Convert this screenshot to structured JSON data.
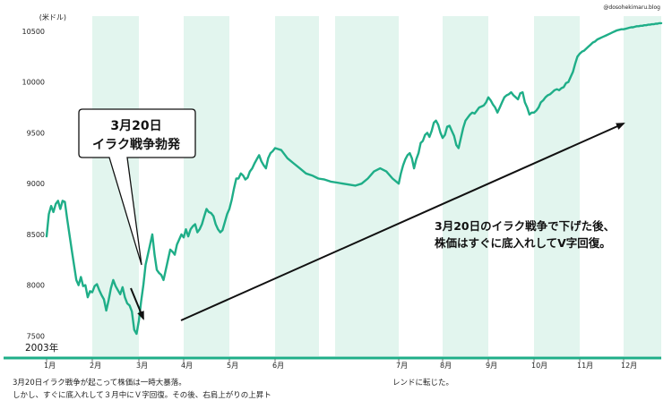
{
  "chart_data": {
    "type": "line",
    "source": "@dosohekimaru.blog",
    "yunit": "(米ドル)",
    "year_label": "2003年",
    "ylim": [
      7300,
      10650
    ],
    "yticks": [
      7500,
      8000,
      8500,
      9000,
      9500,
      10000,
      10500
    ],
    "months": [
      "1月",
      "2月",
      "3月",
      "4月",
      "5月",
      "6月",
      "7月",
      "8月",
      "9月",
      "10月",
      "11月",
      "12月"
    ],
    "grid": false,
    "colors": {
      "line": "#1fae88",
      "band": "#e2f5ee",
      "axis": "#1fae88"
    },
    "series": [
      {
        "x": [
          0.0,
          0.05,
          0.1,
          0.15,
          0.2,
          0.25,
          0.3,
          0.35,
          0.4,
          0.45,
          0.5,
          0.55,
          0.6,
          0.65,
          0.7,
          0.75,
          0.8,
          0.85,
          0.9,
          0.95,
          1.0,
          1.05,
          1.1,
          1.15,
          1.2,
          1.25,
          1.3,
          1.35,
          1.4,
          1.45,
          1.5,
          1.55,
          1.6,
          1.65,
          1.7,
          1.75,
          1.8,
          1.85,
          1.9,
          1.95,
          2.0,
          2.05,
          2.1,
          2.15,
          2.2,
          2.25,
          2.3,
          2.35,
          2.4,
          2.45,
          2.5,
          2.55,
          2.6,
          2.65,
          2.7,
          2.75,
          2.8,
          2.85,
          2.9,
          2.95,
          3.0,
          3.05,
          3.1,
          3.15,
          3.2,
          3.25,
          3.3,
          3.35,
          3.4,
          3.45,
          3.5,
          3.55,
          3.6,
          3.65,
          3.7,
          3.75,
          3.8,
          3.85,
          3.9,
          3.95,
          4.0,
          4.05,
          4.1,
          4.15,
          4.2,
          4.25,
          4.3,
          4.35,
          4.4,
          4.45,
          4.5,
          4.55,
          4.6,
          4.65,
          4.7,
          4.75,
          4.8,
          4.85,
          4.9,
          4.95,
          5.0,
          5.05,
          5.1,
          5.15,
          5.2,
          5.25,
          5.3,
          5.35,
          5.4,
          5.45,
          5.5,
          5.55,
          5.6,
          5.65,
          5.7,
          5.75,
          5.8,
          5.85,
          5.9,
          5.95,
          6.0,
          6.05,
          6.1,
          6.15,
          6.2,
          6.25,
          6.3,
          6.35,
          6.4,
          6.45,
          6.5,
          6.55,
          6.6,
          6.65,
          6.7,
          6.75,
          6.8,
          6.85,
          6.9,
          6.95,
          7.0,
          7.05,
          7.1,
          7.15,
          7.2,
          7.25,
          7.3,
          7.35,
          7.4,
          7.45,
          7.5,
          7.55,
          7.6,
          7.65,
          7.7,
          7.75,
          7.8,
          7.85,
          7.9,
          7.95,
          8.0,
          8.05,
          8.1,
          8.15,
          8.2,
          8.25,
          8.3,
          8.35,
          8.4,
          8.45,
          8.5,
          8.55,
          8.6,
          8.65,
          8.7,
          8.75,
          8.8,
          8.85,
          8.9,
          8.95,
          9.0,
          9.05,
          9.1,
          9.15,
          9.2,
          9.25,
          9.3,
          9.35,
          9.4,
          9.45,
          9.5,
          9.55,
          9.6,
          9.65,
          9.7,
          9.75,
          9.8,
          9.85,
          9.9,
          9.95,
          10.0,
          10.05,
          10.1,
          10.15,
          10.2,
          10.25,
          10.3,
          10.35,
          10.4,
          10.45,
          10.5,
          10.55,
          10.6,
          10.65,
          10.7,
          10.75,
          10.8,
          10.85,
          10.9,
          10.95,
          11.0,
          11.05,
          11.1,
          11.15,
          11.2,
          11.25,
          11.3,
          11.35,
          11.4,
          11.45,
          11.5,
          11.55,
          11.6,
          11.65,
          11.7,
          11.75,
          11.8,
          11.85,
          11.9,
          11.95,
          12.0
        ],
        "y": [
          8480,
          8700,
          8780,
          8720,
          8800,
          8830,
          8750,
          8830,
          8820,
          8650,
          8500,
          8350,
          8200,
          8050,
          8000,
          8080,
          7990,
          8000,
          7880,
          7940,
          7930,
          7990,
          8010,
          7950,
          7900,
          7860,
          7750,
          7850,
          7970,
          8050,
          7990,
          7950,
          7910,
          7980,
          7880,
          7820,
          7800,
          7740,
          7560,
          7520,
          7650,
          7840,
          8000,
          8200,
          8300,
          8400,
          8500,
          8300,
          8150,
          8120,
          8100,
          8050,
          8150,
          8250,
          8350,
          8330,
          8300,
          8400,
          8450,
          8500,
          8470,
          8550,
          8480,
          8550,
          8580,
          8600,
          8520,
          8550,
          8600,
          8680,
          8750,
          8720,
          8710,
          8680,
          8600,
          8550,
          8520,
          8540,
          8620,
          8700,
          8750,
          8840,
          8950,
          9050,
          9050,
          9100,
          9080,
          9040,
          9060,
          9120,
          9150,
          9200,
          9240,
          9280,
          9220,
          9180,
          9150,
          9250,
          9300,
          9320,
          9350,
          9330,
          9250,
          9200,
          9150,
          9100,
          9080,
          9050,
          9040,
          9020,
          9010,
          9000,
          8990,
          8980,
          9000,
          9050,
          9120,
          9150,
          9120,
          9050,
          9000,
          9100,
          9180,
          9240,
          9280,
          9300,
          9250,
          9150,
          9240,
          9300,
          9400,
          9420,
          9480,
          9500,
          9460,
          9520,
          9600,
          9620,
          9580,
          9500,
          9450,
          9480,
          9560,
          9570,
          9520,
          9470,
          9380,
          9350,
          9450,
          9550,
          9620,
          9650,
          9680,
          9700,
          9690,
          9720,
          9750,
          9760,
          9770,
          9800,
          9850,
          9820,
          9780,
          9750,
          9700,
          9750,
          9800,
          9850,
          9870,
          9880,
          9900,
          9870,
          9850,
          9830,
          9890,
          9900,
          9800,
          9750,
          9680,
          9700,
          9700,
          9720,
          9750,
          9800,
          9820,
          9850,
          9870,
          9880,
          9900,
          9920,
          9930,
          9920,
          9940,
          9950,
          9990,
          10000,
          10050,
          10100,
          10180,
          10250,
          10280,
          10300,
          10310,
          10330,
          10350,
          10370,
          10390,
          10400,
          10420,
          10430,
          10440,
          10450,
          10460,
          10470,
          10480,
          10490,
          10500,
          10510,
          10515,
          10520,
          10520,
          10525,
          10530,
          10535,
          10540,
          10540,
          10545,
          10550,
          10550,
          10555,
          10555,
          10560,
          10560,
          10565,
          10565,
          10570,
          10570,
          10575,
          10575,
          10580,
          10580
        ]
      }
    ],
    "callout": {
      "line1": "3月20日",
      "line2": "イラク戦争勃発"
    },
    "annotation": {
      "line1": "3月20日のイラク戦争で下げた後、",
      "line2": "株価はすぐに底入れしてV字回復。"
    },
    "caption": {
      "left_line1": "3月20日イラク戦争が起こって株価は一時大暴落。",
      "left_line2": "しかし、すぐに底入れして３月中にＶ字回復。その後、右肩上がりの上昇ト",
      "right_line1": "レンドに転じた。"
    }
  }
}
